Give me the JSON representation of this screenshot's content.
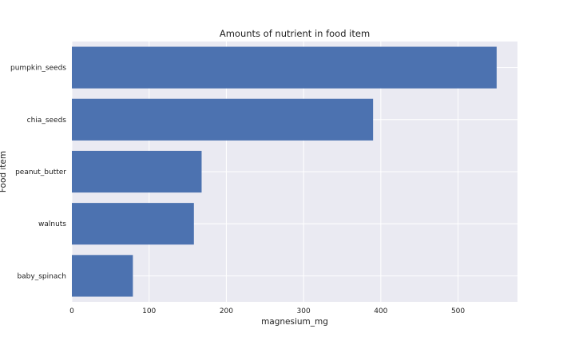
{
  "chart_data": {
    "type": "bar",
    "orientation": "horizontal",
    "title": "Amounts of nutrient in food item",
    "xlabel": "magnesium_mg",
    "ylabel": "Food item",
    "categories": [
      "pumpkin_seeds",
      "chia_seeds",
      "peanut_butter",
      "walnuts",
      "baby_spinach"
    ],
    "values": [
      550,
      390,
      168,
      158,
      79
    ],
    "xlim": [
      0,
      577
    ],
    "xticks": [
      0,
      100,
      200,
      300,
      400,
      500
    ],
    "grid": true,
    "colors": {
      "bar": "#4c72b0",
      "plot_background": "#eaeaf2",
      "grid": "#ffffff"
    }
  }
}
